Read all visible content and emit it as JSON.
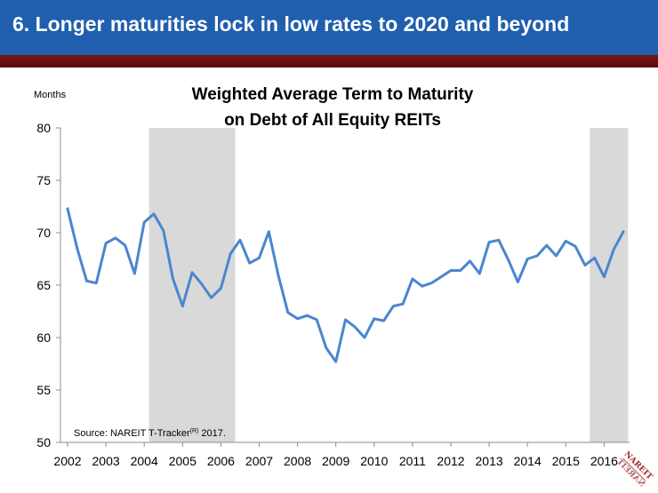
{
  "header": {
    "title": "6.  Longer maturities lock in low rates to 2020 and beyond"
  },
  "logo": {
    "text": "NAREIT"
  },
  "colors": {
    "header_blue": "#1f5fae",
    "header_rule": "#6b1010",
    "line": "#4a86cf",
    "shade": "#d9d9d9"
  },
  "chart_data": {
    "type": "line",
    "title": "Weighted Average Term to Maturity on Debt of All Equity REITs",
    "title_lines": [
      "Weighted Average Term to Maturity",
      "on Debt of All Equity REITs"
    ],
    "ylabel": "Months",
    "ylim": [
      50,
      80
    ],
    "yticks": [
      50,
      55,
      60,
      65,
      70,
      75,
      80
    ],
    "xlim": [
      2002,
      2016.75
    ],
    "xticks": [
      "2002",
      "2003",
      "2004",
      "2005",
      "2006",
      "2007",
      "2008",
      "2009",
      "2010",
      "2011",
      "2012",
      "2013",
      "2014",
      "2015",
      "2016"
    ],
    "grid": false,
    "legend": "none",
    "shaded_periods": [
      [
        2004.125,
        2006.375
      ],
      [
        2015.625,
        2016.625
      ]
    ],
    "source": "Source: NAREIT T-Tracker",
    "source_sup": "(R)",
    "source_tail": " 2017.",
    "series": [
      {
        "x": [
          2002.0,
          2002.25,
          2002.5,
          2002.75,
          2003.0,
          2003.25,
          2003.5,
          2003.75,
          2004.0,
          2004.25,
          2004.5,
          2004.75,
          2005.0,
          2005.25,
          2005.5,
          2005.75,
          2006.0,
          2006.25,
          2006.5,
          2006.75,
          2007.0,
          2007.25,
          2007.5,
          2007.75,
          2008.0,
          2008.25,
          2008.5,
          2008.75,
          2009.0,
          2009.25,
          2009.5,
          2009.75,
          2010.0,
          2010.25,
          2010.5,
          2010.75,
          2011.0,
          2011.25,
          2011.5,
          2011.75,
          2012.0,
          2012.25,
          2012.5,
          2012.75,
          2013.0,
          2013.25,
          2013.5,
          2013.75,
          2014.0,
          2014.25,
          2014.5,
          2014.75,
          2015.0,
          2015.25,
          2015.5,
          2015.75,
          2016.0,
          2016.25,
          2016.5
        ],
        "values": [
          72.3,
          68.5,
          65.4,
          65.2,
          69.0,
          69.5,
          68.8,
          66.1,
          71.0,
          71.8,
          70.2,
          65.6,
          63.0,
          66.2,
          65.1,
          63.8,
          64.7,
          68.0,
          69.3,
          67.1,
          67.6,
          70.1,
          65.9,
          62.4,
          61.8,
          62.1,
          61.7,
          59.0,
          57.7,
          61.7,
          61.0,
          60.0,
          61.8,
          61.6,
          63.0,
          63.2,
          65.6,
          64.9,
          65.2,
          65.8,
          66.4,
          66.4,
          67.3,
          66.1,
          69.1,
          69.3,
          67.4,
          65.3,
          67.5,
          67.8,
          68.8,
          67.8,
          69.2,
          68.7,
          66.9,
          67.6,
          65.8,
          68.4,
          70.1
        ]
      }
    ]
  }
}
